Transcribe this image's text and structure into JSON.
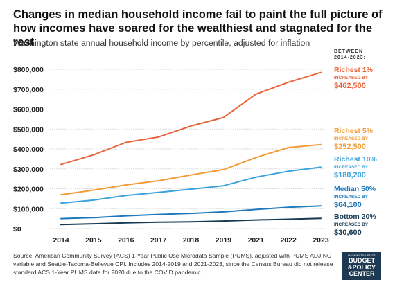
{
  "title": "Changes in median household income fail to paint the full picture of how incomes have soared for the wealthiest and stagnated for the rest",
  "subtitle": "Washington state annual household income by percentile, adjusted for inflation",
  "source": "Source: American Community Survey (ACS) 1-Year Public Use Microdata Sample (PUMS), adjusted with PUMS ADJINC variable and Seattle-Tacoma-Bellevue CPI. Includes 2014-2019 and 2021-2023, since the Census Bureau did not release standard ACS 1-Year PUMS data for 2020 due to the COVID pandemic.",
  "logo": {
    "line1": "WASHINGTON STATE",
    "line2": "BUDGET",
    "line3": "&POLICY",
    "line4": "CENTER"
  },
  "chart_data": {
    "type": "line",
    "categories": [
      "2014",
      "2015",
      "2016",
      "2017",
      "2018",
      "2019",
      "2021",
      "2022",
      "2023"
    ],
    "ylim": [
      0,
      800000
    ],
    "yticks": [
      0,
      100000,
      200000,
      300000,
      400000,
      500000,
      600000,
      700000,
      800000
    ],
    "ytick_labels": [
      "$0",
      "$100,000",
      "$200,000",
      "$300,000",
      "$400,000",
      "$500,000",
      "$600,000",
      "$700,000",
      "$800,000"
    ],
    "grid": "horizontal",
    "legend_header": "BETWEEN 2014-2023:",
    "series": [
      {
        "name": "Richest 1%",
        "color": "#e8643a",
        "change_label": "INCREASED BY",
        "change": "$462,500",
        "values": [
          322000,
          370000,
          433000,
          460000,
          515000,
          558000,
          675000,
          735000,
          784000
        ]
      },
      {
        "name": "Richest 5%",
        "color": "#f39b35",
        "change_label": "INCREASED BY",
        "change": "$252,500",
        "values": [
          170000,
          193000,
          219000,
          240000,
          269000,
          296000,
          357000,
          407000,
          422000
        ]
      },
      {
        "name": "Richest 10%",
        "color": "#3ba3dc",
        "change_label": "INCREASED BY",
        "change": "$180,200",
        "values": [
          128000,
          143000,
          166000,
          182000,
          198000,
          215000,
          258000,
          288000,
          308000
        ]
      },
      {
        "name": "Median 50%",
        "color": "#1d78bd",
        "change_label": "INCREASED BY",
        "change": "$64,100",
        "values": [
          50000,
          55000,
          64000,
          71000,
          76000,
          84000,
          96000,
          107000,
          114000
        ]
      },
      {
        "name": "Bottom 20%",
        "color": "#173a52",
        "change_label": "INCREASED BY",
        "change": "$30,600",
        "values": [
          20000,
          24000,
          29000,
          32000,
          34000,
          38000,
          43000,
          47000,
          51000
        ]
      }
    ]
  }
}
